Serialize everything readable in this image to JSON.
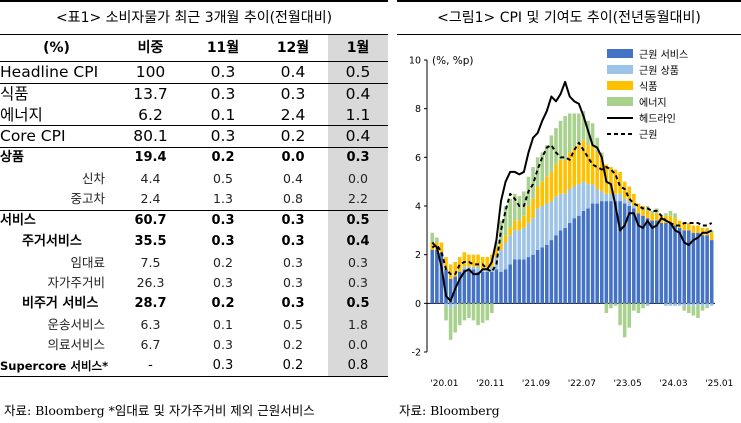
{
  "table": {
    "title": "<표1> 소비자물가 최근 3개월 추이(전월대비)",
    "headers": [
      "(%)",
      "비중",
      "11월",
      "12월",
      "1월"
    ],
    "rows": [
      {
        "label": "Headline CPI",
        "style": "major",
        "weight": "100",
        "v": [
          "0.3",
          "0.4",
          "0.5"
        ]
      },
      {
        "label": "식품",
        "style": "major",
        "weight": "13.7",
        "v": [
          "0.3",
          "0.3",
          "0.4"
        ]
      },
      {
        "label": "에너지",
        "style": "major",
        "weight": "6.2",
        "v": [
          "0.1",
          "2.4",
          "1.1"
        ]
      },
      {
        "label": "Core CPI",
        "style": "major",
        "weight": "80.1",
        "v": [
          "0.3",
          "0.2",
          "0.4"
        ]
      },
      {
        "label": "상품",
        "style": "bold",
        "weight": "19.4",
        "v": [
          "0.2",
          "0.0",
          "0.3"
        ]
      },
      {
        "label": "신차",
        "style": "sub",
        "weight": "4.4",
        "v": [
          "0.5",
          "0.4",
          "0.0"
        ]
      },
      {
        "label": "중고차",
        "style": "sub",
        "weight": "2.4",
        "v": [
          "1.3",
          "0.8",
          "2.2"
        ]
      },
      {
        "label": "서비스",
        "style": "bold",
        "weight": "60.7",
        "v": [
          "0.3",
          "0.3",
          "0.5"
        ]
      },
      {
        "label": "주거서비스",
        "style": "bold-ind",
        "weight": "35.5",
        "v": [
          "0.3",
          "0.3",
          "0.4"
        ]
      },
      {
        "label": "임대료",
        "style": "sub",
        "weight": "7.5",
        "v": [
          "0.2",
          "0.3",
          "0.3"
        ]
      },
      {
        "label": "자가주거비",
        "style": "sub",
        "weight": "26.3",
        "v": [
          "0.3",
          "0.3",
          "0.3"
        ]
      },
      {
        "label": "비주거 서비스",
        "style": "bold-ind",
        "weight": "28.7",
        "v": [
          "0.2",
          "0.3",
          "0.5"
        ]
      },
      {
        "label": "운송서비스",
        "style": "sub",
        "weight": "6.3",
        "v": [
          "0.1",
          "0.5",
          "1.8"
        ]
      },
      {
        "label": "의료서비스",
        "style": "sub",
        "weight": "6.7",
        "v": [
          "0.3",
          "0.2",
          "0.0"
        ]
      },
      {
        "label": "Supercore 서비스*",
        "style": "bold-last",
        "weight": "-",
        "v": [
          "0.3",
          "0.2",
          "0.8"
        ]
      }
    ],
    "source": "자료: Bloomberg *임대료 및 자가주거비 제외 근원서비스"
  },
  "chart_data": {
    "type": "bar",
    "title": "<그림1> CPI 및 기여도 추이(전년동월대비)",
    "ylabel": "(%, %p)",
    "ylim": [
      -2,
      10
    ],
    "yticks": [
      -2,
      0,
      2,
      4,
      6,
      8,
      10
    ],
    "x_tick_labels": [
      "'20.01",
      "'20.11",
      "'21.09",
      "'22.07",
      "'23.05",
      "'24.03",
      "'25.01"
    ],
    "legend_position": "top-right",
    "colors": {
      "core_services": "#4472c4",
      "core_goods": "#9dc3e6",
      "food": "#ffc000",
      "energy": "#a9d18e",
      "headline": "#000000",
      "core": "#000000"
    },
    "series": [
      {
        "name": "근원 서비스",
        "kind": "bar",
        "values": [
          2.2,
          2.2,
          2.1,
          1.4,
          1.0,
          1.1,
          1.3,
          1.4,
          1.4,
          1.4,
          1.3,
          1.3,
          1.3,
          1.3,
          1.4,
          1.3,
          1.4,
          1.6,
          1.8,
          1.8,
          1.8,
          1.9,
          2.0,
          2.2,
          2.3,
          2.4,
          2.6,
          2.8,
          3.0,
          3.1,
          3.3,
          3.5,
          3.6,
          3.8,
          3.9,
          4.1,
          4.1,
          4.2,
          4.2,
          4.2,
          4.2,
          4.2,
          4.1,
          4.0,
          3.9,
          3.7,
          3.6,
          3.5,
          3.4,
          3.4,
          3.3,
          3.3,
          3.3,
          3.2,
          3.1,
          3.0,
          3.0,
          2.9,
          2.9,
          2.8,
          2.8,
          2.6
        ]
      },
      {
        "name": "근원 상품",
        "kind": "bar",
        "values": [
          0.0,
          0.0,
          0.0,
          -0.1,
          -0.2,
          -0.1,
          0.0,
          0.1,
          0.1,
          0.1,
          0.2,
          0.1,
          0.1,
          0.2,
          0.5,
          0.9,
          1.1,
          1.2,
          1.2,
          1.2,
          1.3,
          1.4,
          1.5,
          1.7,
          1.7,
          1.7,
          1.6,
          1.6,
          1.5,
          1.4,
          1.4,
          1.3,
          1.3,
          1.2,
          1.0,
          0.8,
          0.6,
          0.4,
          0.3,
          0.3,
          0.3,
          0.3,
          0.2,
          0.2,
          0.1,
          0.0,
          0.0,
          -0.1,
          0.0,
          0.0,
          0.0,
          -0.1,
          -0.1,
          -0.1,
          -0.1,
          -0.1,
          -0.1,
          -0.1,
          -0.1,
          -0.1,
          -0.1,
          -0.1
        ]
      },
      {
        "name": "식품",
        "kind": "bar",
        "values": [
          0.3,
          0.3,
          0.4,
          0.5,
          0.6,
          0.6,
          0.6,
          0.6,
          0.5,
          0.5,
          0.5,
          0.5,
          0.5,
          0.5,
          0.4,
          0.3,
          0.3,
          0.3,
          0.4,
          0.4,
          0.5,
          0.7,
          0.8,
          0.9,
          1.0,
          1.1,
          1.2,
          1.3,
          1.4,
          1.4,
          1.5,
          1.6,
          1.6,
          1.7,
          1.6,
          1.6,
          1.5,
          1.4,
          1.2,
          1.1,
          1.0,
          0.9,
          0.7,
          0.6,
          0.5,
          0.4,
          0.4,
          0.3,
          0.3,
          0.3,
          0.3,
          0.3,
          0.3,
          0.3,
          0.3,
          0.3,
          0.3,
          0.3,
          0.3,
          0.3,
          0.3,
          0.3
        ]
      },
      {
        "name": "에너지",
        "kind": "bar",
        "values": [
          0.4,
          0.2,
          0.0,
          -0.6,
          -1.3,
          -1.1,
          -0.9,
          -0.7,
          -0.6,
          -0.7,
          -0.9,
          -0.8,
          -0.7,
          -0.4,
          0.2,
          0.9,
          1.2,
          1.2,
          1.1,
          1.0,
          1.0,
          1.2,
          1.3,
          1.2,
          1.2,
          1.3,
          1.5,
          1.5,
          1.6,
          1.8,
          1.6,
          1.4,
          1.3,
          1.2,
          1.0,
          0.9,
          0.6,
          0.2,
          -0.4,
          -0.2,
          -0.1,
          -0.9,
          -1.4,
          -1.0,
          -0.3,
          -0.4,
          -0.2,
          0.2,
          0.1,
          0.2,
          0.0,
          0.1,
          0.2,
          0.2,
          0.0,
          -0.2,
          -0.3,
          -0.4,
          -0.5,
          -0.2,
          -0.1,
          0.1
        ]
      },
      {
        "name": "헤드라인",
        "kind": "line",
        "style": "solid",
        "values": [
          2.5,
          2.3,
          1.5,
          0.3,
          0.1,
          0.6,
          1.0,
          1.3,
          1.4,
          1.2,
          1.2,
          1.4,
          1.4,
          1.7,
          2.6,
          4.2,
          5.0,
          5.4,
          5.4,
          5.3,
          5.4,
          6.2,
          6.8,
          7.0,
          7.5,
          7.9,
          8.5,
          8.3,
          8.6,
          9.1,
          8.5,
          8.3,
          8.2,
          7.7,
          7.1,
          6.5,
          6.4,
          6.0,
          5.0,
          4.9,
          4.0,
          3.0,
          3.2,
          3.7,
          3.7,
          3.2,
          3.1,
          3.4,
          3.1,
          3.2,
          3.5,
          3.4,
          3.3,
          3.0,
          2.9,
          2.5,
          2.4,
          2.6,
          2.7,
          2.9,
          2.9,
          3.0
        ]
      },
      {
        "name": "근원",
        "kind": "line",
        "style": "dashed",
        "values": [
          2.3,
          2.4,
          2.1,
          1.4,
          1.2,
          1.2,
          1.6,
          1.7,
          1.7,
          1.6,
          1.6,
          1.6,
          1.4,
          1.3,
          1.6,
          3.0,
          3.8,
          4.5,
          4.3,
          4.0,
          4.0,
          4.6,
          4.9,
          5.5,
          6.0,
          6.4,
          6.5,
          6.2,
          6.0,
          6.0,
          5.9,
          6.3,
          6.6,
          6.3,
          6.0,
          5.7,
          5.6,
          5.5,
          5.6,
          5.5,
          5.3,
          4.8,
          4.7,
          4.3,
          4.1,
          4.0,
          3.9,
          3.9,
          3.8,
          3.8,
          3.6,
          3.4,
          3.3,
          3.2,
          3.2,
          3.3,
          3.3,
          3.3,
          3.3,
          3.2,
          3.2,
          3.3
        ]
      }
    ],
    "source": "자료: Bloomberg"
  }
}
